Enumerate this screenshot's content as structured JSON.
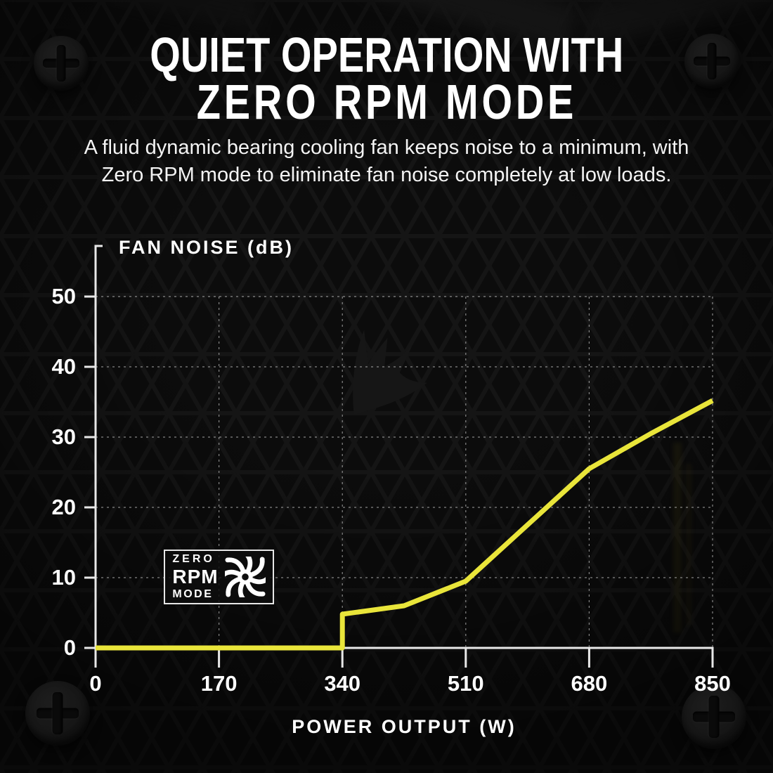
{
  "header": {
    "title_line1": "QUIET OPERATION WITH",
    "title_line2": "ZERO RPM MODE",
    "subtitle_line1": "A fluid dynamic bearing cooling fan keeps noise to a minimum, with",
    "subtitle_line2": "Zero RPM mode to eliminate fan noise completely at low loads."
  },
  "chart": {
    "title": "FAN NOISE (dB)",
    "xlabel": "POWER OUTPUT (W)"
  },
  "chart_data": {
    "type": "line",
    "title": "FAN NOISE (dB)",
    "xlabel": "POWER OUTPUT (W)",
    "ylabel": "FAN NOISE (dB)",
    "xlim": [
      0,
      850
    ],
    "ylim": [
      0,
      50
    ],
    "x_ticks": [
      0,
      170,
      340,
      510,
      680,
      850
    ],
    "y_ticks": [
      0,
      10,
      20,
      30,
      40,
      50
    ],
    "grid": true,
    "legend": "none",
    "series": [
      {
        "name": "Fan noise (dB) vs power output (W)",
        "color": "#e9e53a",
        "x": [
          0,
          340,
          340,
          425,
          510,
          595,
          680,
          765,
          850
        ],
        "y": [
          0,
          0,
          4.8,
          6,
          9.5,
          17.5,
          25.5,
          30.5,
          35.2
        ]
      }
    ],
    "notes": "Noise is 0 dB (fan off, Zero RPM mode) from 0 W to 340 W, then steps up and climbs to ~35 dB at 850 W"
  },
  "badge": {
    "line1": "ZERO",
    "line2": "RPM",
    "line3": "MODE"
  },
  "colors": {
    "background": "#0a0a0a",
    "accent_yellow": "#e9e53a",
    "text": "#ffffff",
    "axis": "#e8e8e8",
    "gridline": "rgba(255,255,255,0.5)"
  },
  "icons": {
    "fan": "fan-icon",
    "screws": "phillips-screw-icon",
    "logo": "corsair-sails-logo-icon"
  }
}
